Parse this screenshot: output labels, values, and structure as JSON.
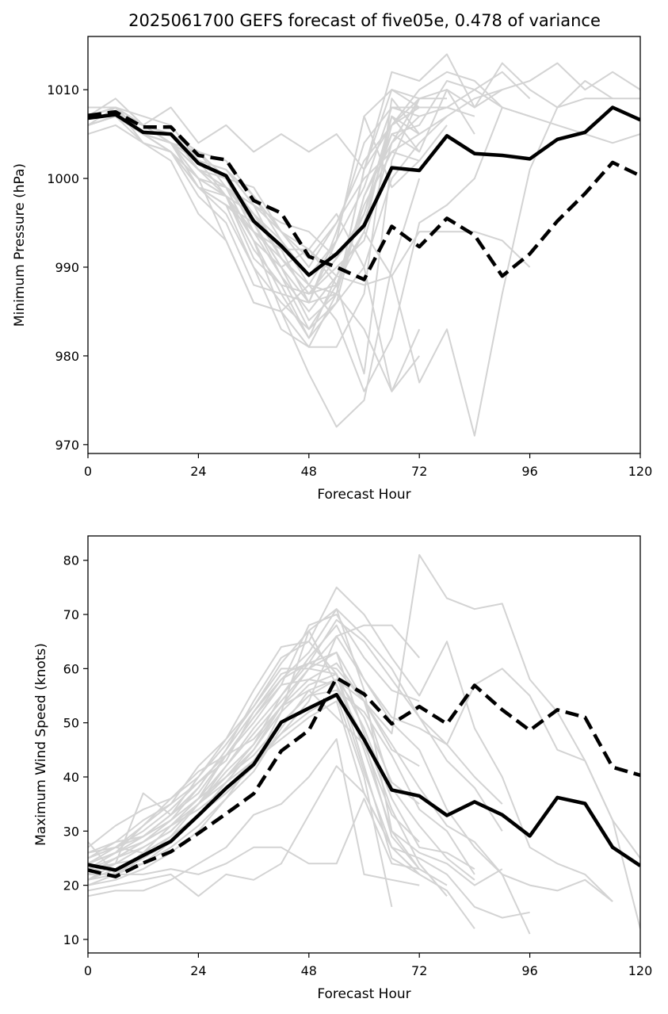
{
  "title": "2025061700 GEFS forecast of five05e, 0.478 of variance",
  "colors": {
    "ensemble": "#d3d3d3",
    "mean": "#000000",
    "background": "#ffffff"
  },
  "chart_data": [
    {
      "type": "line",
      "title": "2025061700 GEFS forecast of five05e, 0.478 of variance",
      "xlabel": "Forecast Hour",
      "ylabel": "Minimum Pressure (hPa)",
      "xlim": [
        0,
        120
      ],
      "ylim": [
        969,
        1016
      ],
      "xticks": [
        "0",
        "24",
        "48",
        "72",
        "96",
        "120"
      ],
      "yticks": [
        "970",
        "980",
        "990",
        "1000",
        "1010"
      ],
      "grid": false,
      "x": [
        0,
        6,
        12,
        18,
        24,
        30,
        36,
        42,
        48,
        54,
        60,
        66,
        72,
        78,
        84,
        90,
        96,
        102,
        108,
        114,
        120
      ],
      "ensemble_members": [
        [
          1006,
          1008,
          1004,
          1003,
          999,
          997,
          990,
          986,
          983,
          986,
          990,
          1000,
          1004,
          1007,
          1009,
          1010,
          1011,
          1013,
          1010,
          1012,
          1010
        ],
        [
          1007,
          1009,
          1006,
          1008,
          1004,
          1006,
          1003,
          1005,
          1003,
          1005,
          1001,
          1012,
          1011,
          1014,
          1008,
          1013,
          1010,
          1008,
          1009,
          1009,
          1009
        ],
        [
          1008,
          1008,
          1007,
          1006,
          1002,
          1001,
          997,
          991,
          987,
          991,
          995,
          1006,
          1010,
          1012,
          1011,
          1008,
          1007,
          1006,
          1005,
          1004,
          1005
        ],
        [
          1006,
          1007,
          1004,
          1002,
          996,
          993,
          986,
          985,
          981,
          987,
          998,
          1005,
          1006,
          1011,
          1010,
          1012,
          1009
        ],
        [
          1005,
          1006,
          1004,
          1003,
          998,
          995,
          988,
          987,
          986,
          993,
          999,
          1008,
          1008,
          1008,
          1010,
          1008,
          1007
        ],
        [
          1007,
          1008,
          1005,
          1004,
          1000,
          999,
          995,
          989,
          985,
          989,
          996,
          1007,
          1003,
          1010,
          1008,
          1010
        ],
        [
          1007,
          1008,
          1006,
          1005,
          1003,
          999,
          993,
          990,
          992,
          988,
          978,
          1002,
          1009,
          1010,
          1005
        ],
        [
          1006,
          1007,
          1005,
          1003,
          1000,
          998,
          994,
          989,
          983,
          988,
          997,
          1003,
          1002,
          1006
        ],
        [
          1006,
          1007,
          1006,
          1004,
          1001,
          998,
          991,
          988,
          987,
          990,
          993,
          1004,
          1009,
          1009
        ],
        [
          1007,
          1008,
          1005,
          1004,
          999,
          996,
          990,
          983,
          981,
          981,
          987,
          1009,
          1005,
          1007
        ],
        [
          1006,
          1007,
          1005,
          1004,
          999,
          997,
          994,
          992,
          992,
          989,
          988,
          989,
          994,
          994,
          994,
          993,
          990
        ],
        [
          1007,
          1008,
          1006,
          1005,
          1003,
          1002,
          998,
          993,
          988,
          984,
          976,
          982,
          995,
          997,
          1000,
          1008
        ],
        [
          1006,
          1007,
          1005,
          1003,
          999,
          997,
          995,
          990,
          984,
          987,
          983,
          976,
          983
        ],
        [
          1007,
          1007,
          1005,
          1003,
          1000,
          993,
          986,
          985,
          988,
          987,
          1001,
          1010,
          1009
        ],
        [
          1006,
          1007,
          1006,
          1004,
          1001,
          1000,
          996,
          993,
          989,
          993,
          1007,
          1010,
          1008
        ],
        [
          1007,
          1008,
          1005,
          1004,
          1002,
          998,
          993,
          985,
          978,
          972,
          975,
          990,
          1000
        ],
        [
          1006,
          1007,
          1006,
          1005,
          1003,
          1000,
          999,
          994,
          991,
          995,
          1000,
          1003,
          1005
        ],
        [
          1007,
          1008,
          1006,
          1004,
          1001,
          999,
          996,
          992,
          986,
          994,
          1004,
          1008,
          1007
        ],
        [
          1006,
          1007,
          1005,
          1004,
          1002,
          1000,
          995,
          990,
          986,
          987,
          1001,
          1006,
          1008
        ],
        [
          1007,
          1007,
          1005,
          1004,
          1003,
          1000,
          994,
          991,
          988,
          993,
          1007,
          999,
          1002
        ],
        [
          1006,
          1007,
          1006,
          1005,
          1002,
          1001,
          997,
          995,
          994,
          991,
          996,
          1005,
          1003
        ],
        [
          1006,
          1007,
          1005,
          1004,
          1000,
          998,
          992,
          988,
          982,
          989,
          994,
          1007,
          1005
        ],
        [
          1007,
          1008,
          1006,
          1004,
          1001,
          999,
          997,
          994,
          992,
          996,
          990,
          976,
          980
        ],
        [
          1006,
          1007,
          1005,
          1004,
          1002,
          1001,
          998,
          994,
          990,
          995,
          1002,
          1006,
          1009
        ],
        [
          1007,
          1008,
          1006,
          1005,
          1001,
          999,
          993,
          987,
          982,
          986,
          998,
          1004,
          1007,
          1008,
          1007
        ],
        [
          1006,
          1007,
          1005,
          1003,
          999,
          998,
          996,
          991,
          987,
          988,
          994,
          989,
          977,
          983,
          971,
          987,
          1001,
          1008,
          1011,
          1009
        ]
      ],
      "series": [
        {
          "values": [
            1006.8,
            1007.2,
            1005.2,
            1005.0,
            1001.7,
            1000.3,
            995.2,
            992.4,
            989.1,
            991.5,
            994.7,
            1001.2,
            1000.9,
            1004.8,
            1002.8,
            1002.6,
            1002.2,
            1004.4,
            1005.2,
            1008.0,
            1006.6
          ],
          "style": "solid"
        },
        {
          "values": [
            1007.1,
            1007.5,
            1005.8,
            1005.8,
            1002.6,
            1002.1,
            997.5,
            996.1,
            991.2,
            990.0,
            988.6,
            994.6,
            992.3,
            995.5,
            993.6,
            989.0,
            991.5,
            995.2,
            998.3,
            1001.8,
            1000.3
          ],
          "style": "dashed"
        }
      ]
    },
    {
      "type": "line",
      "xlabel": "Forecast Hour",
      "ylabel": "Maximum Wind Speed (knots)",
      "xlim": [
        0,
        120
      ],
      "ylim": [
        7.5,
        84.5
      ],
      "xticks": [
        "0",
        "24",
        "48",
        "72",
        "96",
        "120"
      ],
      "yticks": [
        "10",
        "20",
        "30",
        "40",
        "50",
        "60",
        "70",
        "80"
      ],
      "grid": false,
      "x": [
        0,
        6,
        12,
        18,
        24,
        30,
        36,
        42,
        48,
        54,
        60,
        66,
        72,
        78,
        84,
        90,
        96,
        102,
        108,
        114,
        120
      ],
      "ensemble_members": [
        [
          28,
          22,
          25,
          29,
          35,
          40,
          44,
          50,
          55,
          58,
          54,
          48,
          81,
          73,
          71,
          72,
          58,
          52,
          43,
          32,
          12
        ],
        [
          23,
          24,
          37,
          33,
          40,
          47,
          56,
          64,
          65,
          75,
          70,
          62,
          55,
          65,
          49,
          40,
          27,
          24,
          22,
          17
        ],
        [
          25,
          27,
          26,
          31,
          36,
          44,
          51,
          58,
          63,
          71,
          66,
          60,
          51,
          46,
          57,
          60,
          55,
          45,
          43,
          32,
          25
        ],
        [
          24,
          26,
          28,
          32,
          38,
          45,
          52,
          59,
          61,
          69,
          65,
          58,
          51,
          43,
          38,
          30
        ],
        [
          22,
          25,
          27,
          30,
          35,
          42,
          49,
          55,
          62,
          68,
          58,
          50,
          45,
          34,
          27,
          22,
          20,
          19,
          21,
          17
        ],
        [
          26,
          28,
          29,
          33,
          37,
          44,
          47,
          53,
          60,
          63,
          54,
          46,
          38,
          31,
          28,
          22,
          11
        ],
        [
          27,
          31,
          34,
          36,
          40,
          46,
          53,
          61,
          67,
          71,
          56,
          30,
          26,
          24,
          20,
          23
        ],
        [
          23,
          26,
          31,
          35,
          42,
          47,
          53,
          60,
          60,
          59,
          49,
          36,
          27,
          26,
          23
        ],
        [
          20,
          21,
          23,
          26,
          30,
          36,
          43,
          50,
          55,
          56,
          52,
          44,
          34,
          30,
          22
        ],
        [
          25,
          27,
          30,
          34,
          39,
          44,
          51,
          57,
          58,
          61,
          54,
          38,
          31,
          25,
          21
        ],
        [
          21,
          23,
          24,
          28,
          33,
          37,
          42,
          52,
          67,
          57,
          41,
          27,
          22,
          19,
          12
        ],
        [
          24,
          26,
          29,
          33,
          38,
          45,
          54,
          62,
          65,
          59,
          45,
          30,
          23,
          20
        ],
        [
          22,
          24,
          27,
          30,
          35,
          41,
          46,
          55,
          61,
          63,
          48,
          34,
          24,
          18
        ],
        [
          21,
          24,
          25,
          28,
          33,
          39,
          45,
          53,
          58,
          57,
          47,
          29,
          23
        ],
        [
          23,
          25,
          28,
          32,
          36,
          42,
          48,
          54,
          60,
          66,
          68,
          68,
          62
        ],
        [
          24,
          27,
          31,
          36,
          41,
          44,
          50,
          57,
          68,
          70,
          62,
          56,
          54
        ],
        [
          25,
          28,
          32,
          35,
          39,
          43,
          52,
          58,
          61,
          60,
          54,
          45,
          42
        ],
        [
          20,
          22,
          24,
          27,
          31,
          36,
          41,
          49,
          56,
          51,
          46,
          33,
          28
        ],
        [
          18,
          19,
          19,
          21,
          24,
          27,
          33,
          35,
          40,
          47,
          22,
          21,
          20
        ],
        [
          22,
          22,
          22,
          23,
          22,
          24,
          27,
          27,
          24,
          24,
          36,
          24,
          23
        ],
        [
          19,
          20,
          21,
          22,
          18,
          22,
          21,
          24,
          33,
          42,
          37,
          27,
          22
        ],
        [
          24,
          26,
          28,
          31,
          35,
          40,
          45,
          52,
          57,
          59,
          42,
          25,
          22
        ],
        [
          26,
          27,
          29,
          32,
          36,
          40,
          46,
          53,
          56,
          58,
          51,
          39,
          35
        ],
        [
          22,
          25,
          28,
          31,
          34,
          38,
          43,
          48,
          52,
          55,
          40,
          16
        ],
        [
          21,
          22,
          26,
          29,
          33,
          37,
          42,
          48,
          54,
          66,
          58,
          51,
          49,
          46,
          40,
          35
        ],
        [
          23,
          24,
          27,
          30,
          35,
          39,
          43,
          47,
          51,
          54,
          37,
          27,
          25,
          22,
          16,
          14,
          15
        ]
      ],
      "series": [
        {
          "values": [
            23.8,
            22.8,
            25.5,
            28.1,
            32.9,
            37.9,
            42.3,
            50.1,
            52.7,
            55.2,
            46.9,
            37.6,
            36.5,
            32.9,
            35.4,
            33.0,
            29.1,
            36.2,
            35.1,
            27.0,
            23.6
          ],
          "style": "solid"
        },
        {
          "values": [
            22.8,
            21.6,
            24.1,
            26.2,
            29.6,
            33.2,
            36.9,
            44.8,
            48.6,
            58.3,
            55.3,
            49.8,
            53.0,
            49.8,
            56.9,
            52.4,
            48.6,
            52.4,
            51.0,
            41.8,
            40.3
          ],
          "style": "dashed"
        }
      ]
    }
  ]
}
